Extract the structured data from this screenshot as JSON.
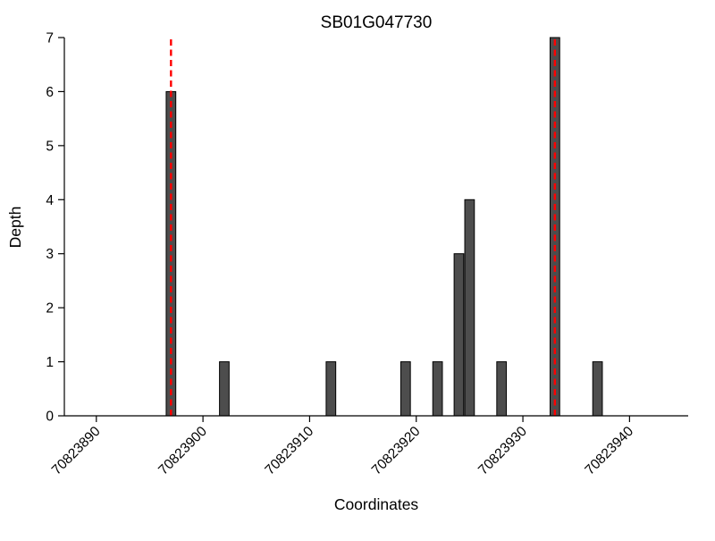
{
  "chart_data": {
    "type": "bar",
    "title": "SB01G047730",
    "xlabel": "Coordinates",
    "ylabel": "Depth",
    "bars": [
      {
        "x": 70823897,
        "depth": 6
      },
      {
        "x": 70823902,
        "depth": 1
      },
      {
        "x": 70823912,
        "depth": 1
      },
      {
        "x": 70823919,
        "depth": 1
      },
      {
        "x": 70823922,
        "depth": 1
      },
      {
        "x": 70823924,
        "depth": 3
      },
      {
        "x": 70823925,
        "depth": 4
      },
      {
        "x": 70823928,
        "depth": 1
      },
      {
        "x": 70823933,
        "depth": 7
      },
      {
        "x": 70823937,
        "depth": 1
      }
    ],
    "highlight_lines_x": [
      70823897,
      70823933
    ],
    "highlight_line_style": "dashed",
    "highlight_color": "#ff0000",
    "bar_color": "#4d4d4d",
    "bar_edge_color": "#000000",
    "bar_width": 0.9,
    "xticks": [
      70823890,
      70823900,
      70823910,
      70823920,
      70823930,
      70823940
    ],
    "yticks": [
      0,
      1,
      2,
      3,
      4,
      5,
      6,
      7
    ],
    "xlim": [
      70823887,
      70823945.5
    ],
    "ylim": [
      0,
      7
    ],
    "grid": false,
    "legend": "none",
    "background": "#ffffff"
  }
}
